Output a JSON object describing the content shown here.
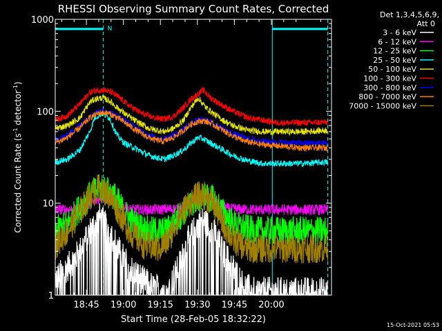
{
  "chart_data": {
    "type": "line",
    "title": "RHESSI Observing Summary Count Rates, Corrected",
    "xlabel": "Start Time (28-Feb-05 18:32:22)",
    "ylabel_main": "Corrected Count Rate (s",
    "ylabel_sup1": "-1",
    "ylabel_mid": " detector",
    "ylabel_sup2": "-1",
    "ylabel_end": ")",
    "yscale": "log",
    "ylim": [
      1,
      1000
    ],
    "xlim_minutes": [
      0,
      112
    ],
    "x_ticks": [
      {
        "label": "18:45",
        "minutes": 12.63
      },
      {
        "label": "19:00",
        "minutes": 27.63
      },
      {
        "label": "19:15",
        "minutes": 42.63
      },
      {
        "label": "19:30",
        "minutes": 57.63
      },
      {
        "label": "19:45",
        "minutes": 72.63
      },
      {
        "label": "20:00",
        "minutes": 87.63
      }
    ],
    "y_ticks": [
      {
        "label": "1",
        "value": 1
      },
      {
        "label": "10",
        "value": 10
      },
      {
        "label": "100",
        "value": 100
      },
      {
        "label": "1000",
        "value": 1000
      }
    ],
    "legend_header": [
      "Det 1,3,4,5,6,9,",
      "Att 0"
    ],
    "timestamp": "15-Oct-2021 05:53",
    "night_marker": "N",
    "night_intervals": [
      [
        0,
        19.5
      ],
      [
        88,
        110.5
      ]
    ],
    "series": [
      {
        "name": "3 - 6 keV",
        "color": "#ffffff",
        "points": [
          [
            0,
            1.5
          ],
          [
            5,
            2
          ],
          [
            10,
            3
          ],
          [
            14,
            5
          ],
          [
            18,
            7
          ],
          [
            22,
            5
          ],
          [
            26,
            3
          ],
          [
            30,
            2
          ],
          [
            35,
            1.5
          ],
          [
            40,
            1.2
          ],
          [
            46,
            1.2
          ],
          [
            50,
            2
          ],
          [
            54,
            4
          ],
          [
            58,
            6
          ],
          [
            60,
            6.5
          ],
          [
            64,
            5
          ],
          [
            68,
            3
          ],
          [
            72,
            2
          ],
          [
            76,
            1.3
          ],
          [
            80,
            1.1
          ],
          [
            90,
            1.1
          ],
          [
            100,
            1.1
          ],
          [
            110,
            1.1
          ]
        ]
      },
      {
        "name": "6 - 12 keV",
        "color": "#ff00ff",
        "points": [
          [
            0,
            8.5
          ],
          [
            10,
            8.6
          ],
          [
            15,
            10
          ],
          [
            20,
            12
          ],
          [
            25,
            10
          ],
          [
            30,
            8.5
          ],
          [
            40,
            8.5
          ],
          [
            50,
            8.7
          ],
          [
            55,
            10
          ],
          [
            60,
            12
          ],
          [
            65,
            10
          ],
          [
            70,
            8.7
          ],
          [
            80,
            8.5
          ],
          [
            90,
            8.5
          ],
          [
            110,
            8.5
          ]
        ]
      },
      {
        "name": "12 - 25 keV",
        "color": "#00ff00",
        "points": [
          [
            0,
            5
          ],
          [
            5,
            6
          ],
          [
            10,
            9
          ],
          [
            15,
            13
          ],
          [
            19,
            15
          ],
          [
            24,
            12
          ],
          [
            28,
            8
          ],
          [
            32,
            6
          ],
          [
            38,
            5
          ],
          [
            45,
            5
          ],
          [
            50,
            7
          ],
          [
            55,
            10
          ],
          [
            60,
            12
          ],
          [
            64,
            11
          ],
          [
            68,
            8
          ],
          [
            72,
            6
          ],
          [
            80,
            5
          ],
          [
            90,
            5
          ],
          [
            110,
            5
          ]
        ]
      },
      {
        "name": "25 - 50 keV",
        "color": "#00ffff",
        "points": [
          [
            0,
            28
          ],
          [
            5,
            30
          ],
          [
            10,
            38
          ],
          [
            14,
            60
          ],
          [
            16,
            85
          ],
          [
            19,
            95
          ],
          [
            22,
            85
          ],
          [
            25,
            55
          ],
          [
            28,
            45
          ],
          [
            32,
            40
          ],
          [
            38,
            33
          ],
          [
            44,
            30
          ],
          [
            48,
            33
          ],
          [
            52,
            38
          ],
          [
            55,
            45
          ],
          [
            58,
            52
          ],
          [
            60,
            50
          ],
          [
            63,
            45
          ],
          [
            68,
            38
          ],
          [
            72,
            33
          ],
          [
            78,
            29
          ],
          [
            84,
            27
          ],
          [
            90,
            27
          ],
          [
            100,
            27
          ],
          [
            110,
            28
          ]
        ]
      },
      {
        "name": "50 - 100 keV",
        "color": "#e5e500",
        "points": [
          [
            0,
            65
          ],
          [
            5,
            70
          ],
          [
            10,
            85
          ],
          [
            14,
            125
          ],
          [
            16,
            135
          ],
          [
            19,
            140
          ],
          [
            22,
            130
          ],
          [
            25,
            110
          ],
          [
            28,
            95
          ],
          [
            32,
            80
          ],
          [
            38,
            65
          ],
          [
            44,
            60
          ],
          [
            48,
            65
          ],
          [
            52,
            80
          ],
          [
            55,
            110
          ],
          [
            58,
            140
          ],
          [
            61,
            110
          ],
          [
            64,
            95
          ],
          [
            68,
            80
          ],
          [
            72,
            70
          ],
          [
            78,
            62
          ],
          [
            84,
            60
          ],
          [
            90,
            60
          ],
          [
            100,
            60
          ],
          [
            110,
            62
          ]
        ]
      },
      {
        "name": "100 - 300 keV",
        "color": "#ff0000",
        "points": [
          [
            0,
            80
          ],
          [
            5,
            90
          ],
          [
            10,
            120
          ],
          [
            14,
            160
          ],
          [
            17,
            170
          ],
          [
            20,
            170
          ],
          [
            23,
            160
          ],
          [
            26,
            140
          ],
          [
            30,
            115
          ],
          [
            35,
            95
          ],
          [
            40,
            85
          ],
          [
            44,
            82
          ],
          [
            48,
            88
          ],
          [
            52,
            110
          ],
          [
            55,
            135
          ],
          [
            58,
            155
          ],
          [
            60,
            170
          ],
          [
            63,
            140
          ],
          [
            68,
            115
          ],
          [
            72,
            100
          ],
          [
            78,
            85
          ],
          [
            84,
            80
          ],
          [
            90,
            75
          ],
          [
            100,
            75
          ],
          [
            110,
            76
          ]
        ]
      },
      {
        "name": "300 - 800 keV",
        "color": "#0000ff",
        "points": [
          [
            0,
            48
          ],
          [
            5,
            55
          ],
          [
            10,
            70
          ],
          [
            14,
            90
          ],
          [
            18,
            100
          ],
          [
            21,
            100
          ],
          [
            25,
            90
          ],
          [
            28,
            80
          ],
          [
            32,
            68
          ],
          [
            36,
            58
          ],
          [
            40,
            52
          ],
          [
            44,
            50
          ],
          [
            48,
            55
          ],
          [
            52,
            65
          ],
          [
            55,
            75
          ],
          [
            58,
            80
          ],
          [
            61,
            80
          ],
          [
            64,
            75
          ],
          [
            68,
            65
          ],
          [
            72,
            57
          ],
          [
            76,
            52
          ],
          [
            82,
            48
          ],
          [
            90,
            46
          ],
          [
            100,
            45
          ],
          [
            110,
            45
          ]
        ]
      },
      {
        "name": "800 - 7000 keV",
        "color": "#ff8000",
        "points": [
          [
            0,
            45
          ],
          [
            5,
            52
          ],
          [
            10,
            66
          ],
          [
            14,
            85
          ],
          [
            18,
            96
          ],
          [
            21,
            96
          ],
          [
            25,
            86
          ],
          [
            28,
            76
          ],
          [
            32,
            64
          ],
          [
            36,
            55
          ],
          [
            40,
            49
          ],
          [
            44,
            47
          ],
          [
            48,
            52
          ],
          [
            52,
            62
          ],
          [
            55,
            72
          ],
          [
            58,
            78
          ],
          [
            61,
            78
          ],
          [
            64,
            72
          ],
          [
            68,
            62
          ],
          [
            72,
            54
          ],
          [
            76,
            48
          ],
          [
            82,
            44
          ],
          [
            90,
            42
          ],
          [
            100,
            40
          ],
          [
            110,
            40
          ]
        ]
      },
      {
        "name": "7000 - 15000 keV",
        "color": "#a08000",
        "points": [
          [
            0,
            3.5
          ],
          [
            5,
            5
          ],
          [
            10,
            8
          ],
          [
            14,
            12
          ],
          [
            18,
            15
          ],
          [
            22,
            12
          ],
          [
            26,
            8
          ],
          [
            30,
            5
          ],
          [
            36,
            3.5
          ],
          [
            42,
            3.2
          ],
          [
            46,
            4
          ],
          [
            50,
            7
          ],
          [
            54,
            10
          ],
          [
            58,
            12
          ],
          [
            61,
            12
          ],
          [
            64,
            10
          ],
          [
            68,
            6
          ],
          [
            72,
            4
          ],
          [
            78,
            3.2
          ],
          [
            90,
            3.2
          ],
          [
            110,
            3.2
          ]
        ]
      }
    ]
  }
}
